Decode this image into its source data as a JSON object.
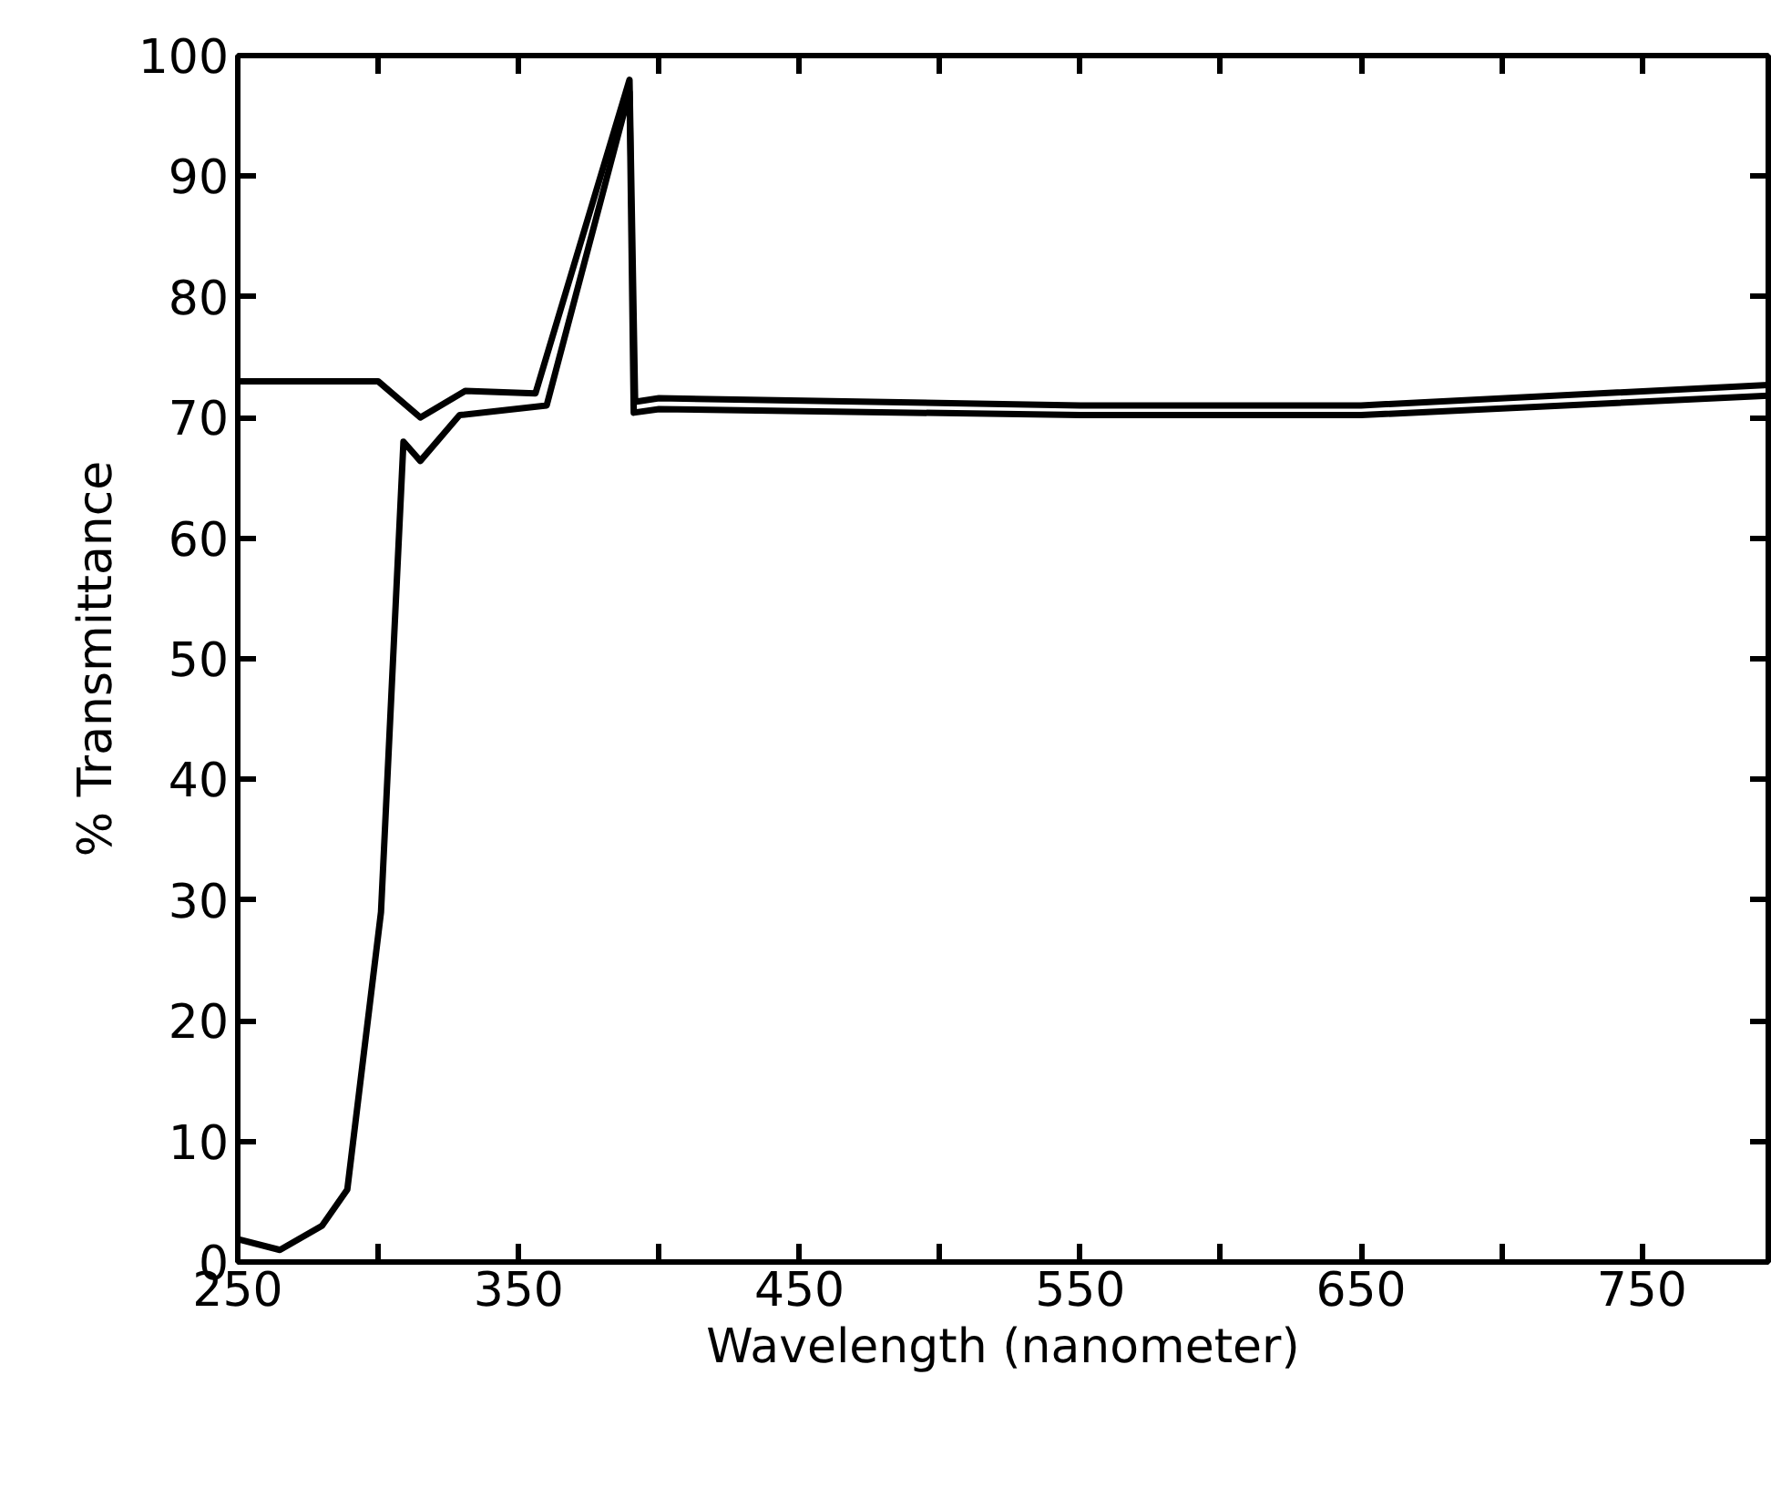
{
  "chart_data": {
    "type": "line",
    "xlabel": "Wavelength (nanometer)",
    "ylabel": "% Transmittance",
    "xlim": [
      250,
      795
    ],
    "ylim": [
      0,
      100
    ],
    "xticks": [
      250,
      {
        "value": 300,
        "label": null
      },
      350,
      {
        "value": 400,
        "label": null
      },
      450,
      {
        "value": 500,
        "label": null
      },
      550,
      {
        "value": 600,
        "label": null
      },
      650,
      {
        "value": 700,
        "label": null
      },
      750
    ],
    "yticks": [
      0,
      10,
      20,
      30,
      40,
      50,
      60,
      70,
      80,
      90,
      100
    ],
    "grid": false,
    "marker": "none",
    "line_style": "solid",
    "series": [
      {
        "color": "#000000",
        "x": [
          250,
          300,
          315,
          331,
          356,
          389.5,
          391.5,
          400,
          550,
          650,
          795
        ],
        "values": [
          73,
          73,
          70,
          72.2,
          72,
          98,
          71.3,
          71.6,
          71,
          71,
          72.7
        ]
      },
      {
        "color": "#000000",
        "x": [
          250,
          265,
          280,
          289,
          301,
          309,
          315,
          329,
          360,
          389.5,
          391,
          400,
          550,
          650,
          795
        ],
        "values": [
          1.9,
          1,
          3,
          6,
          29,
          68,
          66.4,
          70.2,
          71,
          97,
          70.4,
          70.7,
          70.2,
          70.2,
          71.8
        ]
      }
    ]
  }
}
